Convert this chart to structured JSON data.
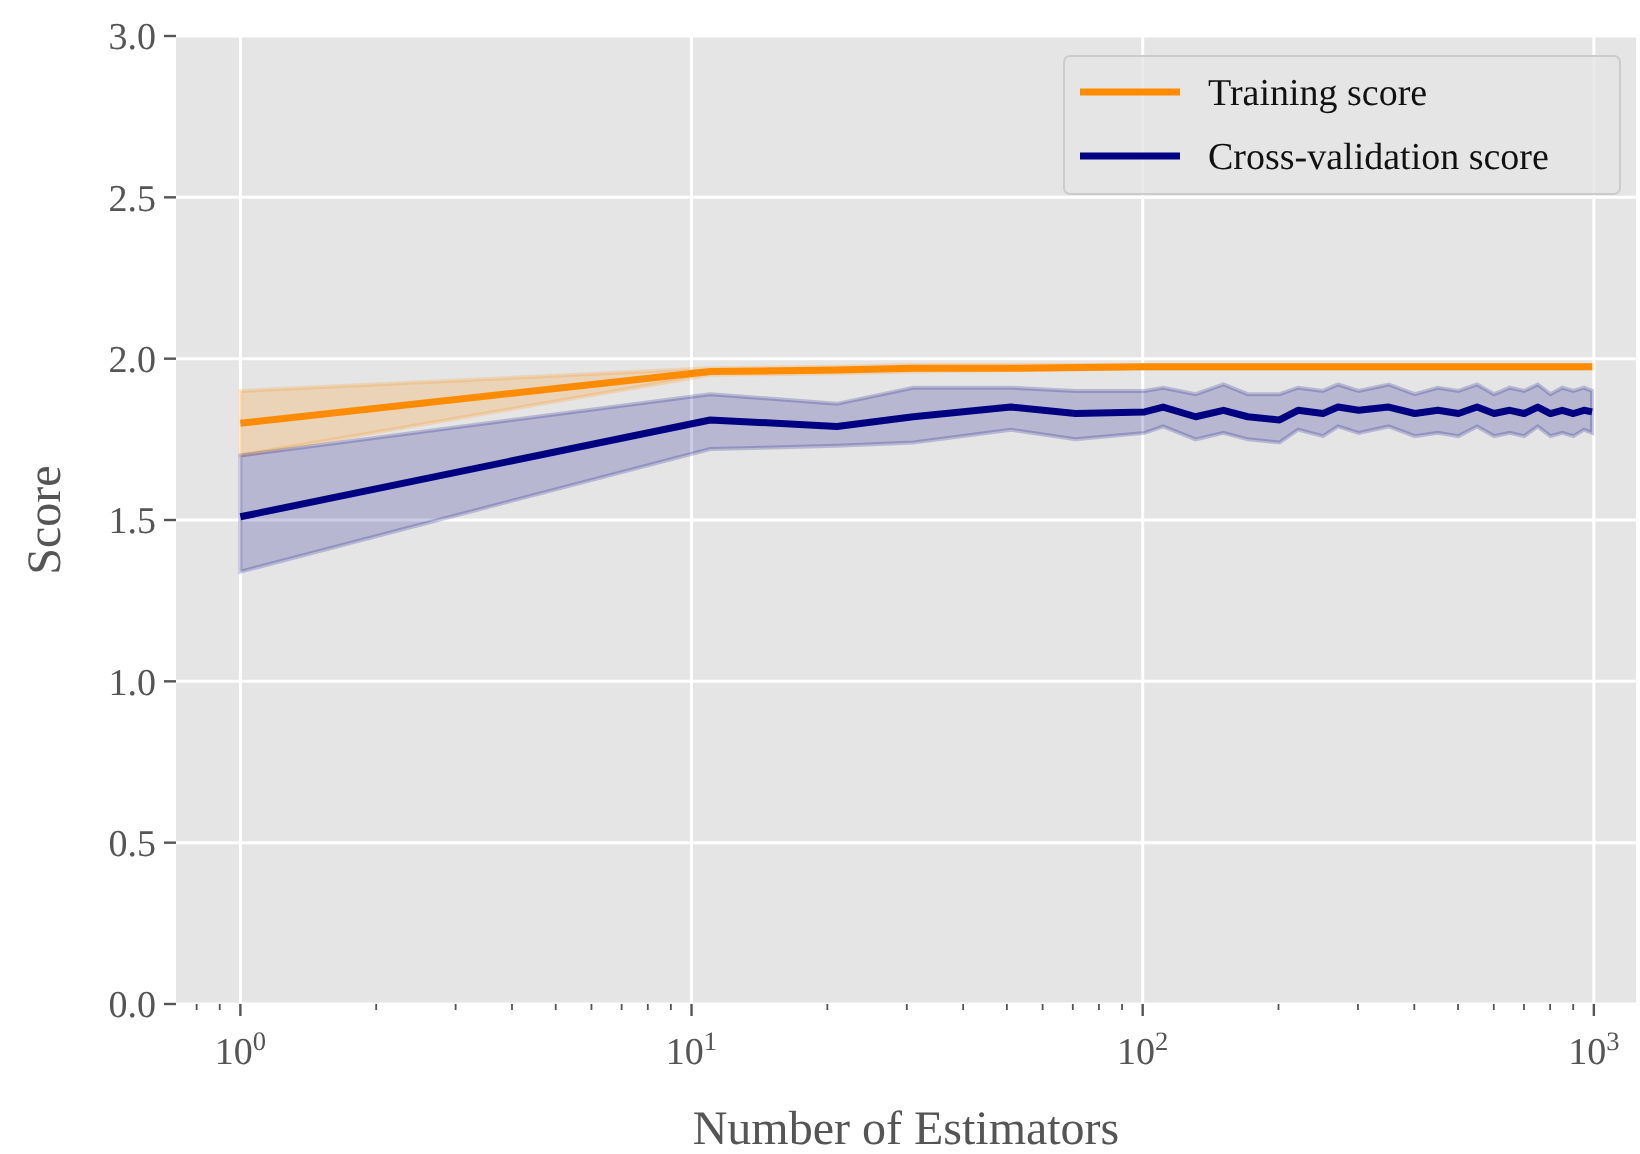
{
  "chart_data": {
    "type": "line",
    "xlabel": "Number of Estimators",
    "ylabel": "Score",
    "log": "x",
    "grid": true,
    "legend": "top right",
    "line_style": "solid",
    "xlim": [
      0.72,
      1240
    ],
    "ylim": [
      0,
      3
    ],
    "xticks": [
      {
        "value": 0.8,
        "label": null
      },
      {
        "value": 0.9,
        "label": null
      },
      {
        "value": 1,
        "label": "10$^{0}$"
      },
      {
        "value": 2,
        "label": null
      },
      {
        "value": 3,
        "label": null
      },
      {
        "value": 4,
        "label": null
      },
      {
        "value": 5,
        "label": null
      },
      {
        "value": 6,
        "label": null
      },
      {
        "value": 7,
        "label": null
      },
      {
        "value": 8,
        "label": null
      },
      {
        "value": 9,
        "label": null
      },
      {
        "value": 10,
        "label": "10$^{1}$"
      },
      {
        "value": 20,
        "label": null
      },
      {
        "value": 30,
        "label": null
      },
      {
        "value": 40,
        "label": null
      },
      {
        "value": 50,
        "label": null
      },
      {
        "value": 60,
        "label": null
      },
      {
        "value": 70,
        "label": null
      },
      {
        "value": 80,
        "label": null
      },
      {
        "value": 90,
        "label": null
      },
      {
        "value": 100,
        "label": "10$^{2}$"
      },
      {
        "value": 200,
        "label": null
      },
      {
        "value": 300,
        "label": null
      },
      {
        "value": 400,
        "label": null
      },
      {
        "value": 500,
        "label": null
      },
      {
        "value": 600,
        "label": null
      },
      {
        "value": 700,
        "label": null
      },
      {
        "value": 800,
        "label": null
      },
      {
        "value": 900,
        "label": null
      },
      {
        "value": 1000,
        "label": "10$^{3}$"
      }
    ],
    "yticks": [
      {
        "value": 0,
        "label": "0.0"
      },
      {
        "value": 0.5,
        "label": "0.5"
      },
      {
        "value": 1,
        "label": "1.0"
      },
      {
        "value": 1.5,
        "label": "1.5"
      },
      {
        "value": 2,
        "label": "2.0"
      },
      {
        "value": 2.5,
        "label": "2.5"
      },
      {
        "value": 3,
        "label": "3.0"
      }
    ],
    "series": [
      {
        "name": "Training score",
        "color": "#ff8c00",
        "x": [
          1,
          11,
          21,
          31,
          51,
          101,
          201,
          301,
          501,
          701,
          991
        ],
        "values": [
          1.8,
          1.96,
          1.965,
          1.97,
          1.97,
          1.975,
          1.975,
          1.975,
          1.975,
          1.975,
          1.975
        ],
        "lower": [
          1.7,
          1.95,
          1.955,
          1.96,
          1.965,
          1.97,
          1.97,
          1.97,
          1.97,
          1.97,
          1.97
        ],
        "upper": [
          1.9,
          1.97,
          1.975,
          1.98,
          1.98,
          1.98,
          1.98,
          1.98,
          1.98,
          1.98,
          1.98
        ]
      },
      {
        "name": "Cross-validation score",
        "color": "#000080",
        "x": [
          1,
          11,
          21,
          31,
          51,
          71,
          101,
          111,
          131,
          151,
          171,
          201,
          221,
          251,
          271,
          301,
          351,
          401,
          451,
          501,
          551,
          601,
          651,
          701,
          751,
          801,
          851,
          901,
          951,
          991
        ],
        "values": [
          1.51,
          1.81,
          1.79,
          1.82,
          1.85,
          1.83,
          1.835,
          1.85,
          1.82,
          1.84,
          1.82,
          1.81,
          1.84,
          1.83,
          1.85,
          1.84,
          1.85,
          1.83,
          1.84,
          1.83,
          1.85,
          1.83,
          1.84,
          1.83,
          1.85,
          1.83,
          1.84,
          1.83,
          1.84,
          1.835
        ],
        "lower": [
          1.34,
          1.72,
          1.73,
          1.74,
          1.78,
          1.75,
          1.77,
          1.79,
          1.75,
          1.77,
          1.75,
          1.74,
          1.78,
          1.76,
          1.79,
          1.77,
          1.79,
          1.76,
          1.77,
          1.76,
          1.79,
          1.76,
          1.77,
          1.76,
          1.79,
          1.76,
          1.77,
          1.76,
          1.78,
          1.77
        ],
        "upper": [
          1.7,
          1.89,
          1.86,
          1.91,
          1.91,
          1.9,
          1.9,
          1.91,
          1.89,
          1.92,
          1.89,
          1.89,
          1.91,
          1.9,
          1.92,
          1.9,
          1.92,
          1.89,
          1.91,
          1.9,
          1.92,
          1.89,
          1.91,
          1.9,
          1.92,
          1.89,
          1.91,
          1.9,
          1.91,
          1.9
        ]
      }
    ]
  }
}
